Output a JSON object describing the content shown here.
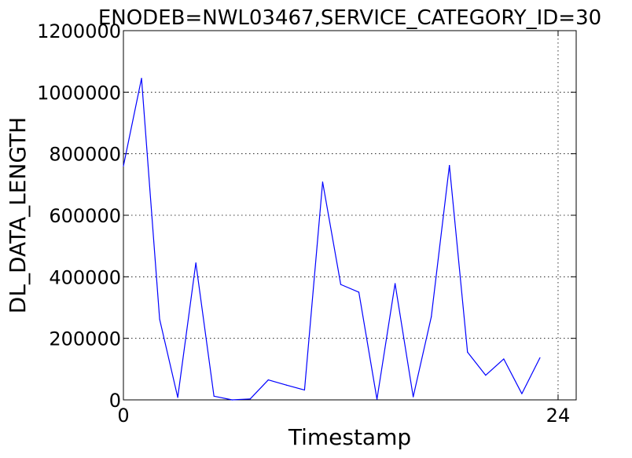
{
  "chart_data": {
    "type": "line",
    "title": "ENODEB=NWL03467,SERVICE_CATEGORY_ID=30",
    "xlabel": "Timestamp",
    "ylabel": "DL_DATA_LENGTH",
    "xlim": [
      0,
      25
    ],
    "ylim": [
      0,
      1200000
    ],
    "x_tick_values": [
      0,
      24
    ],
    "x_tick_labels": [
      "0",
      "24"
    ],
    "y_tick_values": [
      0,
      200000,
      400000,
      600000,
      800000,
      1000000,
      1200000
    ],
    "y_tick_labels": [
      "0",
      "200000",
      "400000",
      "600000",
      "800000",
      "1000000",
      "1200000"
    ],
    "grid": true,
    "series": [
      {
        "name": "DL_DATA_LENGTH",
        "color": "#0000ff",
        "x": [
          0,
          1,
          2,
          3,
          4,
          5,
          6,
          7,
          8,
          9,
          10,
          11,
          12,
          13,
          14,
          15,
          16,
          17,
          18,
          19,
          20,
          21,
          22,
          23
        ],
        "values": [
          760000,
          1045000,
          262000,
          8000,
          445000,
          12000,
          0,
          3000,
          65000,
          48000,
          32000,
          708000,
          375000,
          350000,
          2000,
          378000,
          10000,
          270000,
          762000,
          155000,
          80000,
          133000,
          20000,
          137000
        ]
      }
    ]
  }
}
